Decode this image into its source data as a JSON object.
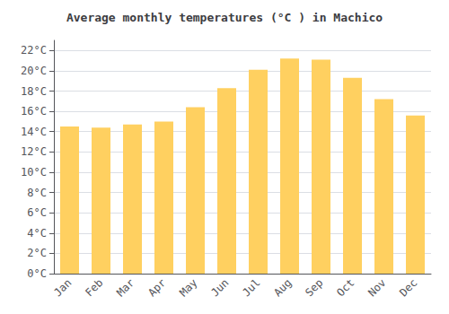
{
  "chart_data": {
    "type": "bar",
    "title": "Average monthly temperatures (°C ) in Machico",
    "categories": [
      "Jan",
      "Feb",
      "Mar",
      "Apr",
      "May",
      "Jun",
      "Jul",
      "Aug",
      "Sep",
      "Oct",
      "Nov",
      "Dec"
    ],
    "values": [
      14.5,
      14.4,
      14.7,
      15.0,
      16.4,
      18.3,
      20.1,
      21.2,
      21.1,
      19.3,
      17.2,
      15.6
    ],
    "color": "#FFD060",
    "ylim": [
      0,
      23
    ],
    "yticks": [
      {
        "value": 0,
        "label": "0°C"
      },
      {
        "value": 2,
        "label": "2°C"
      },
      {
        "value": 4,
        "label": "4°C"
      },
      {
        "value": 6,
        "label": "6°C"
      },
      {
        "value": 8,
        "label": "8°C"
      },
      {
        "value": 10,
        "label": "10°C"
      },
      {
        "value": 12,
        "label": "12°C"
      },
      {
        "value": 14,
        "label": "14°C"
      },
      {
        "value": 16,
        "label": "16°C"
      },
      {
        "value": 18,
        "label": "18°C"
      },
      {
        "value": 20,
        "label": "20°C"
      },
      {
        "value": 22,
        "label": "22°C"
      }
    ],
    "grid": true
  }
}
